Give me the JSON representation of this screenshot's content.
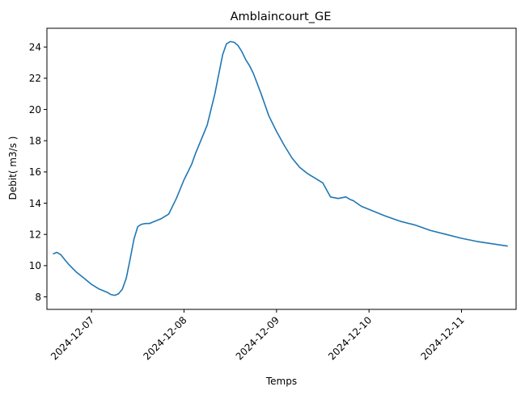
{
  "chart_data": {
    "type": "line",
    "title": "Amblaincourt_GE",
    "xlabel": "Temps",
    "ylabel": "Debit( m3/s )",
    "x_axis": "date",
    "xlim": [
      "2024-12-06 12:25",
      "2024-12-11 14:10"
    ],
    "ylim": [
      7.2,
      25.2
    ],
    "xticks": [
      "2024-12-07",
      "2024-12-08",
      "2024-12-09",
      "2024-12-10",
      "2024-12-11"
    ],
    "yticks": [
      8,
      10,
      12,
      14,
      16,
      18,
      20,
      22,
      24
    ],
    "grid": false,
    "color": "#1f77b4",
    "series": [
      {
        "x": [
          "2024-12-06 14:00",
          "2024-12-06 15:00",
          "2024-12-06 16:00",
          "2024-12-06 17:00",
          "2024-12-06 18:00",
          "2024-12-06 20:00",
          "2024-12-06 22:00",
          "2024-12-07 00:00",
          "2024-12-07 02:00",
          "2024-12-07 04:00",
          "2024-12-07 05:00",
          "2024-12-07 06:00",
          "2024-12-07 07:00",
          "2024-12-07 08:00",
          "2024-12-07 09:00",
          "2024-12-07 10:00",
          "2024-12-07 11:00",
          "2024-12-07 12:00",
          "2024-12-07 13:00",
          "2024-12-07 14:00",
          "2024-12-07 15:00",
          "2024-12-07 16:00",
          "2024-12-07 18:00",
          "2024-12-07 20:00",
          "2024-12-07 22:00",
          "2024-12-08 00:00",
          "2024-12-08 01:00",
          "2024-12-08 02:00",
          "2024-12-08 03:00",
          "2024-12-08 04:00",
          "2024-12-08 06:00",
          "2024-12-08 08:00",
          "2024-12-08 10:00",
          "2024-12-08 11:00",
          "2024-12-08 12:00",
          "2024-12-08 13:00",
          "2024-12-08 14:00",
          "2024-12-08 15:00",
          "2024-12-08 16:00",
          "2024-12-08 17:00",
          "2024-12-08 18:00",
          "2024-12-08 20:00",
          "2024-12-08 22:00",
          "2024-12-09 00:00",
          "2024-12-09 02:00",
          "2024-12-09 04:00",
          "2024-12-09 06:00",
          "2024-12-09 08:00",
          "2024-12-09 10:00",
          "2024-12-09 12:00",
          "2024-12-09 14:00",
          "2024-12-09 16:00",
          "2024-12-09 18:00",
          "2024-12-09 19:00",
          "2024-12-09 20:00",
          "2024-12-09 22:00",
          "2024-12-10 00:00",
          "2024-12-10 04:00",
          "2024-12-10 08:00",
          "2024-12-10 12:00",
          "2024-12-10 16:00",
          "2024-12-10 20:00",
          "2024-12-11 00:00",
          "2024-12-11 04:00",
          "2024-12-11 08:00",
          "2024-12-11 12:00"
        ],
        "y": [
          10.75,
          10.85,
          10.7,
          10.4,
          10.1,
          9.6,
          9.2,
          8.8,
          8.5,
          8.3,
          8.15,
          8.1,
          8.2,
          8.5,
          9.2,
          10.4,
          11.7,
          12.5,
          12.65,
          12.7,
          12.7,
          12.8,
          13.0,
          13.3,
          14.3,
          15.5,
          16.0,
          16.5,
          17.2,
          17.8,
          19.0,
          21.0,
          23.5,
          24.2,
          24.35,
          24.3,
          24.1,
          23.7,
          23.2,
          22.8,
          22.3,
          21.0,
          19.6,
          18.6,
          17.7,
          16.9,
          16.3,
          15.9,
          15.6,
          15.3,
          14.4,
          14.3,
          14.4,
          14.25,
          14.15,
          13.8,
          13.6,
          13.2,
          12.85,
          12.6,
          12.25,
          12.0,
          11.75,
          11.55,
          11.4,
          11.25
        ]
      }
    ]
  }
}
